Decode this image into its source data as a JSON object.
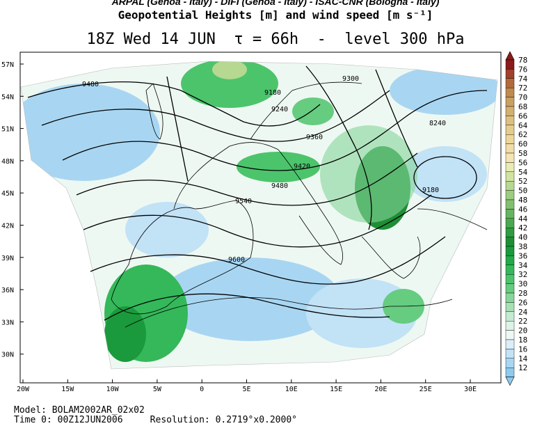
{
  "header": {
    "institutions": "ARPAL (Genoa - Italy)  -  DIFI (Genoa - Italy)  -  ISAC-CNR (Bologna - Italy)",
    "product_title": "Geopotential Heights [m] and wind speed [m s⁻¹]",
    "valid_line": "18Z Wed 14 JUN  τ = 66h  -  level 300 hPa"
  },
  "map": {
    "lat_labels": [
      "57N",
      "54N",
      "51N",
      "48N",
      "45N",
      "42N",
      "39N",
      "36N",
      "33N",
      "30N"
    ],
    "lon_labels": [
      "20W",
      "15W",
      "10W",
      "5W",
      "0",
      "5E",
      "10E",
      "15E",
      "20E",
      "25E",
      "30E"
    ],
    "contour_labels": [
      "9480",
      "9180",
      "9300",
      "9240",
      "9360",
      "8240",
      "9420",
      "9480",
      "9180",
      "9540",
      "9600"
    ],
    "colors": {
      "coast": "#000000",
      "contour": "#000000",
      "sea_bg": "#ffffff"
    }
  },
  "colorbar": {
    "levels": [
      "78",
      "76",
      "74",
      "72",
      "70",
      "68",
      "66",
      "64",
      "62",
      "60",
      "58",
      "56",
      "54",
      "52",
      "50",
      "48",
      "46",
      "44",
      "42",
      "40",
      "38",
      "36",
      "34",
      "32",
      "30",
      "28",
      "26",
      "24",
      "22",
      "20",
      "18",
      "16",
      "14",
      "12"
    ],
    "colors": [
      "#8b1a1a",
      "#a0412b",
      "#b06a3c",
      "#bf8a4e",
      "#c8a060",
      "#d4b070",
      "#dcc080",
      "#e4cc8c",
      "#ecd69a",
      "#f2dca6",
      "#f4e4b4",
      "#e8ecb0",
      "#d0e4a0",
      "#b6d890",
      "#9ccc80",
      "#82c070",
      "#66b460",
      "#4aa850",
      "#2e9c40",
      "#1e8e36",
      "#1a9a3c",
      "#22aa48",
      "#34b85a",
      "#4cc46c",
      "#66cc80",
      "#86d69a",
      "#a6e0b4",
      "#c4ead0",
      "#dff2e8",
      "#eef8f2",
      "#dceef8",
      "#c2e2f6",
      "#a8d6f2",
      "#8ecaee"
    ]
  },
  "footer": {
    "model": "Model: BOLAM2002AR_02x02",
    "time0": "Time 0: 00Z12JUN2006     Resolution: 0.2719°x0.2000°"
  }
}
